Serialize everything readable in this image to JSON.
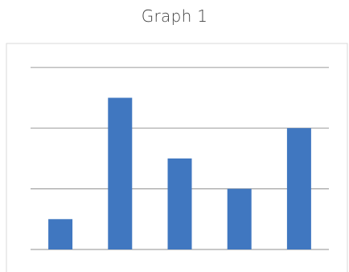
{
  "chart_data": {
    "type": "bar",
    "title": "Graph 1",
    "xlabel": "",
    "ylabel": "",
    "categories": [
      "",
      "",
      "",
      "",
      ""
    ],
    "values": [
      1,
      5,
      3,
      2,
      4
    ],
    "ylim": [
      0,
      6
    ],
    "grid": true,
    "bar_color": "#4077C0",
    "grid_color": "#A6A6A6",
    "frame_color": "#D9D9D9"
  }
}
